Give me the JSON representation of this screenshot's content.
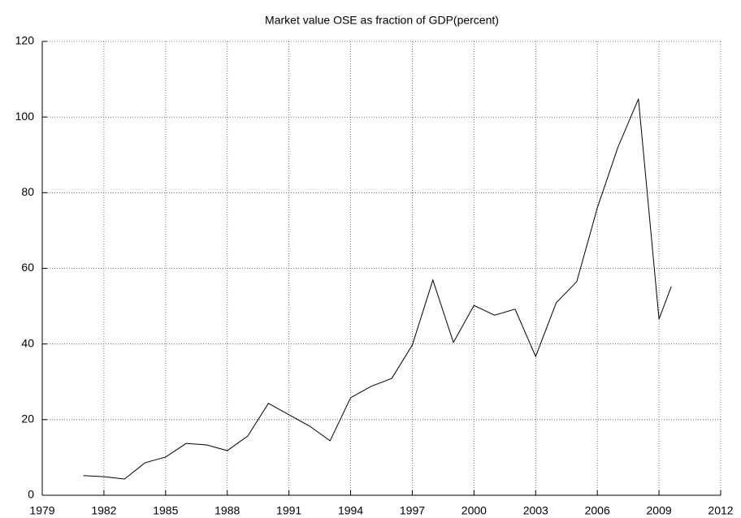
{
  "chart_data": {
    "type": "line",
    "title": "Market value OSE as fraction of GDP(percent)",
    "x": [
      1981,
      1982,
      1983,
      1984,
      1985,
      1986,
      1987,
      1988,
      1989,
      1990,
      1991,
      1992,
      1993,
      1994,
      1995,
      1996,
      1997,
      1998,
      1999,
      2000,
      2001,
      2002,
      2003,
      2004,
      2005,
      2006,
      2007,
      2008,
      2009,
      2009.6
    ],
    "series": [
      {
        "color": "#000000",
        "values": [
          5.2,
          4.9,
          4.3,
          8.6,
          10.1,
          13.7,
          13.3,
          11.8,
          15.7,
          24.3,
          21.3,
          18.3,
          14.4,
          25.8,
          28.8,
          30.9,
          39.7,
          56.9,
          40.4,
          50.2,
          47.6,
          49.2,
          36.7,
          50.9,
          56.5,
          76,
          92,
          104.8,
          46.6,
          55.2
        ]
      }
    ],
    "xlim": [
      1979,
      2012
    ],
    "xticks": [
      1979,
      1982,
      1985,
      1988,
      1991,
      1994,
      1997,
      2000,
      2003,
      2006,
      2009,
      2012
    ],
    "ylim": [
      0,
      120
    ],
    "yticks": [
      0,
      20,
      40,
      60,
      80,
      100,
      120
    ],
    "grid": true
  }
}
